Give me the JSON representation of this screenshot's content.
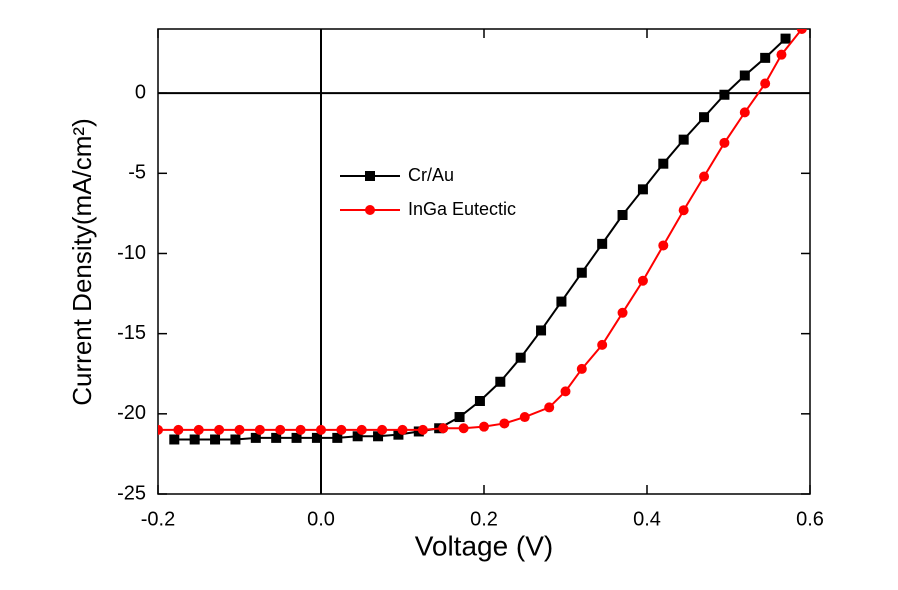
{
  "chart_data": {
    "type": "line",
    "xlabel": "Voltage (V)",
    "ylabel": "Current Density(mA/cm²)",
    "xlim": [
      -0.2,
      0.6
    ],
    "ylim": [
      -25,
      4
    ],
    "xticks": [
      -0.2,
      {
        "value": 0,
        "label": "0.0"
      },
      0.2,
      0.4,
      0.6
    ],
    "yticks": [
      0,
      -5,
      -10,
      -15,
      -20,
      -25
    ],
    "series": [
      {
        "name": "Cr/Au",
        "color": "#000000",
        "marker": "square",
        "x": [
          -0.18,
          -0.155,
          -0.13,
          -0.105,
          -0.08,
          -0.055,
          -0.03,
          -0.005,
          0.02,
          0.045,
          0.07,
          0.095,
          0.12,
          0.145,
          0.17,
          0.195,
          0.22,
          0.245,
          0.27,
          0.295,
          0.32,
          0.345,
          0.37,
          0.395,
          0.42,
          0.445,
          0.47,
          0.495,
          0.52,
          0.545,
          0.57
        ],
        "values": [
          -21.6,
          -21.6,
          -21.6,
          -21.6,
          -21.5,
          -21.5,
          -21.5,
          -21.5,
          -21.5,
          -21.4,
          -21.4,
          -21.3,
          -21.1,
          -20.9,
          -20.2,
          -19.2,
          -18.0,
          -16.5,
          -14.8,
          -13.0,
          -11.2,
          -9.4,
          -7.6,
          -6.0,
          -4.4,
          -2.9,
          -1.5,
          -0.1,
          1.1,
          2.2,
          3.4
        ]
      },
      {
        "name": "InGa Eutectic",
        "color": "#ff0000",
        "marker": "circle",
        "x": [
          -0.2,
          -0.175,
          -0.15,
          -0.125,
          -0.1,
          -0.075,
          -0.05,
          -0.025,
          0,
          0.025,
          0.05,
          0.075,
          0.1,
          0.125,
          0.15,
          0.175,
          0.2,
          0.225,
          0.25,
          0.28,
          0.3,
          0.32,
          0.345,
          0.37,
          0.395,
          0.42,
          0.445,
          0.47,
          0.495,
          0.52,
          0.545,
          0.565,
          0.59
        ],
        "values": [
          -21.0,
          -21.0,
          -21.0,
          -21.0,
          -21.0,
          -21.0,
          -21.0,
          -21.0,
          -21.0,
          -21.0,
          -21.0,
          -21.0,
          -21.0,
          -21.0,
          -20.9,
          -20.9,
          -20.8,
          -20.6,
          -20.2,
          -19.6,
          -18.6,
          -17.2,
          -15.7,
          -13.7,
          -11.7,
          -9.5,
          -7.3,
          -5.2,
          -3.1,
          -1.2,
          0.6,
          2.4,
          4.0
        ]
      }
    ]
  }
}
